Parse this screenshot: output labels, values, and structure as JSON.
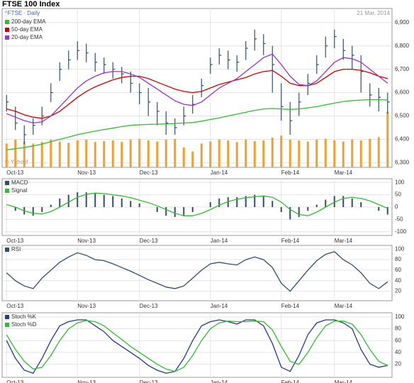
{
  "chart_data": [
    {
      "type": "hlc",
      "title": "FTSE 100 Index",
      "subtitle": "^FTSE · Daily",
      "date_label": "21 Mar, 2014",
      "credit": "© Yahoo!",
      "categories": [
        "Oct-13",
        null,
        null,
        null,
        null,
        null,
        null,
        null,
        "Nov-13",
        null,
        null,
        null,
        null,
        null,
        null,
        "Dec-13",
        null,
        null,
        null,
        null,
        null,
        null,
        null,
        "Jan-14",
        null,
        null,
        null,
        null,
        null,
        null,
        null,
        "Feb-14",
        null,
        null,
        null,
        null,
        null,
        "Mar-14",
        null,
        null,
        null,
        null,
        null,
        null
      ],
      "high": [
        6590,
        6540,
        6460,
        6490,
        6540,
        6640,
        6730,
        6780,
        6820,
        6810,
        6770,
        6750,
        6730,
        6710,
        6690,
        6640,
        6620,
        6560,
        6520,
        6490,
        6540,
        6590,
        6660,
        6750,
        6790,
        6780,
        6760,
        6820,
        6870,
        6850,
        6800,
        6640,
        6560,
        6600,
        6680,
        6760,
        6840,
        6870,
        6830,
        6800,
        6760,
        6640,
        6620,
        6600
      ],
      "low": [
        6520,
        6440,
        6380,
        6420,
        6460,
        6560,
        6650,
        6700,
        6740,
        6730,
        6690,
        6680,
        6660,
        6640,
        6600,
        6550,
        6500,
        6460,
        6420,
        6420,
        6460,
        6510,
        6580,
        6680,
        6720,
        6700,
        6690,
        6740,
        6780,
        6760,
        6600,
        6480,
        6420,
        6500,
        6590,
        6680,
        6750,
        6790,
        6740,
        6700,
        6600,
        6540,
        6520,
        6510
      ],
      "close": [
        6560,
        6470,
        6420,
        6460,
        6500,
        6600,
        6700,
        6740,
        6780,
        6770,
        6730,
        6720,
        6700,
        6680,
        6640,
        6600,
        6560,
        6520,
        6470,
        6450,
        6500,
        6550,
        6630,
        6720,
        6760,
        6740,
        6730,
        6790,
        6830,
        6810,
        6720,
        6540,
        6480,
        6560,
        6640,
        6720,
        6800,
        6840,
        6780,
        6760,
        6690,
        6590,
        6580,
        6560
      ],
      "color": "#2f4f6f",
      "series": [
        {
          "name": "200-day EMA",
          "color": "#33bb33",
          "values": [
            6355,
            6360,
            6365,
            6372,
            6380,
            6390,
            6400,
            6410,
            6420,
            6428,
            6435,
            6442,
            6448,
            6455,
            6460,
            6462,
            6464,
            6465,
            6466,
            6468,
            6470,
            6472,
            6478,
            6485,
            6492,
            6500,
            6508,
            6516,
            6524,
            6530,
            6532,
            6530,
            6528,
            6530,
            6535,
            6540,
            6548,
            6555,
            6562,
            6566,
            6568,
            6570,
            6570,
            6568
          ]
        },
        {
          "name": "50-day EMA",
          "color": "#cc0000",
          "values": [
            6530,
            6520,
            6505,
            6495,
            6490,
            6500,
            6520,
            6550,
            6580,
            6605,
            6625,
            6640,
            6655,
            6665,
            6670,
            6670,
            6660,
            6645,
            6630,
            6615,
            6605,
            6600,
            6605,
            6620,
            6635,
            6645,
            6655,
            6665,
            6680,
            6690,
            6695,
            6670,
            6640,
            6630,
            6630,
            6640,
            6665,
            6690,
            6700,
            6700,
            6695,
            6685,
            6670,
            6660
          ]
        },
        {
          "name": "20-day EMA",
          "color": "#9933cc",
          "values": [
            6510,
            6495,
            6480,
            6470,
            6475,
            6500,
            6540,
            6580,
            6620,
            6650,
            6670,
            6685,
            6690,
            6690,
            6680,
            6665,
            6640,
            6615,
            6590,
            6565,
            6550,
            6545,
            6560,
            6590,
            6620,
            6640,
            6660,
            6690,
            6720,
            6750,
            6765,
            6720,
            6670,
            6635,
            6630,
            6650,
            6690,
            6730,
            6750,
            6745,
            6730,
            6700,
            6670,
            6640
          ]
        }
      ],
      "volume": {
        "color": "#f0a030",
        "axis": "y2",
        "values": [
          600,
          700,
          650,
          600,
          640,
          700,
          650,
          620,
          680,
          700,
          640,
          660,
          680,
          640,
          700,
          720,
          680,
          650,
          700,
          720,
          500,
          400,
          600,
          650,
          700,
          680,
          640,
          700,
          660,
          680,
          750,
          800,
          700,
          680,
          650,
          700,
          720,
          680,
          650,
          700,
          680,
          720,
          760,
          1400
        ]
      },
      "ylim": [
        6280,
        6960
      ],
      "yticks": [
        {
          "value": 6300,
          "label": "6,300"
        },
        {
          "value": 6400,
          "label": "6,400"
        },
        {
          "value": 6500,
          "label": "6,500"
        },
        {
          "value": 6600,
          "label": "6,600"
        },
        {
          "value": 6700,
          "label": "6,700"
        },
        {
          "value": 6800,
          "label": "6,800"
        },
        {
          "value": 6900,
          "label": "6,900"
        }
      ],
      "y2lim": [
        0,
        4000
      ],
      "grid": true,
      "legend": "top-left"
    },
    {
      "type": "macd",
      "categories": [
        "Oct-13",
        null,
        null,
        null,
        null,
        null,
        null,
        null,
        "Nov-13",
        null,
        null,
        null,
        null,
        null,
        null,
        "Dec-13",
        null,
        null,
        null,
        null,
        null,
        null,
        null,
        "Jan-14",
        null,
        null,
        null,
        null,
        null,
        null,
        null,
        "Feb-14",
        null,
        null,
        null,
        null,
        null,
        "Mar-14",
        null,
        null,
        null,
        null,
        null,
        null
      ],
      "series": [
        {
          "name": "MACD",
          "color": "#2f4f6f",
          "values": [
            0,
            -15,
            -30,
            -35,
            -20,
            10,
            35,
            50,
            60,
            60,
            55,
            50,
            45,
            35,
            25,
            15,
            0,
            -20,
            -35,
            -40,
            -35,
            -20,
            0,
            20,
            35,
            40,
            40,
            45,
            50,
            45,
            25,
            -20,
            -50,
            -40,
            -15,
            10,
            30,
            45,
            45,
            35,
            20,
            0,
            -15,
            -30
          ]
        },
        {
          "name": "Signal",
          "color": "#33bb33",
          "values": [
            10,
            0,
            -15,
            -25,
            -28,
            -18,
            0,
            20,
            40,
            52,
            57,
            55,
            50,
            45,
            38,
            28,
            18,
            5,
            -10,
            -25,
            -35,
            -35,
            -25,
            -10,
            8,
            22,
            32,
            38,
            42,
            45,
            40,
            20,
            -10,
            -30,
            -35,
            -20,
            0,
            20,
            35,
            40,
            35,
            25,
            10,
            -5
          ]
        }
      ],
      "ylim": [
        -115,
        115
      ],
      "yticks": [
        -100,
        -50,
        0,
        50,
        100
      ],
      "grid": true,
      "legend": "top-left"
    },
    {
      "type": "line",
      "categories": [
        "Oct-13",
        null,
        null,
        null,
        null,
        null,
        null,
        null,
        "Nov-13",
        null,
        null,
        null,
        null,
        null,
        null,
        "Dec-13",
        null,
        null,
        null,
        null,
        null,
        null,
        null,
        "Jan-14",
        null,
        null,
        null,
        null,
        null,
        null,
        null,
        "Feb-14",
        null,
        null,
        null,
        null,
        null,
        "Mar-14",
        null,
        null,
        null,
        null,
        null,
        null
      ],
      "series": [
        {
          "name": "RSI",
          "color": "#2f4f6f",
          "values": [
            55,
            40,
            30,
            25,
            45,
            60,
            75,
            85,
            93,
            88,
            80,
            78,
            72,
            65,
            58,
            50,
            42,
            35,
            28,
            25,
            30,
            45,
            60,
            72,
            75,
            72,
            70,
            80,
            85,
            80,
            65,
            35,
            20,
            40,
            60,
            78,
            90,
            95,
            80,
            70,
            55,
            35,
            25,
            38
          ]
        }
      ],
      "ylim": [
        2,
        107
      ],
      "yticks": [
        20,
        40,
        60,
        80,
        100
      ],
      "grid": true,
      "legend": "top-left"
    },
    {
      "type": "line",
      "categories": [
        "Oct-13",
        null,
        null,
        null,
        null,
        null,
        null,
        null,
        "Nov-13",
        null,
        null,
        null,
        null,
        null,
        null,
        "Dec-13",
        null,
        null,
        null,
        null,
        null,
        null,
        null,
        "Jan-14",
        null,
        null,
        null,
        null,
        null,
        null,
        null,
        "Feb-14",
        null,
        null,
        null,
        null,
        null,
        "Mar-14",
        null,
        null,
        null,
        null,
        null,
        null
      ],
      "series": [
        {
          "name": "Stoch %K",
          "color": "#1f3f7f",
          "values": [
            60,
            30,
            10,
            5,
            30,
            60,
            85,
            92,
            95,
            95,
            85,
            75,
            60,
            50,
            40,
            30,
            18,
            10,
            5,
            8,
            30,
            60,
            85,
            92,
            95,
            92,
            88,
            95,
            95,
            85,
            55,
            15,
            8,
            35,
            70,
            90,
            95,
            95,
            90,
            80,
            45,
            20,
            15,
            18
          ]
        },
        {
          "name": "Stoch %D",
          "color": "#33bb33",
          "values": [
            70,
            45,
            25,
            12,
            15,
            35,
            60,
            80,
            90,
            94,
            92,
            85,
            73,
            62,
            50,
            40,
            30,
            20,
            12,
            8,
            15,
            35,
            60,
            80,
            90,
            93,
            92,
            92,
            93,
            92,
            78,
            50,
            25,
            20,
            40,
            65,
            85,
            93,
            93,
            88,
            70,
            45,
            25,
            18
          ]
        }
      ],
      "ylim": [
        -2,
        107
      ],
      "yticks": [
        20,
        40,
        60,
        80,
        100
      ],
      "grid": true,
      "legend": "top-left"
    }
  ]
}
